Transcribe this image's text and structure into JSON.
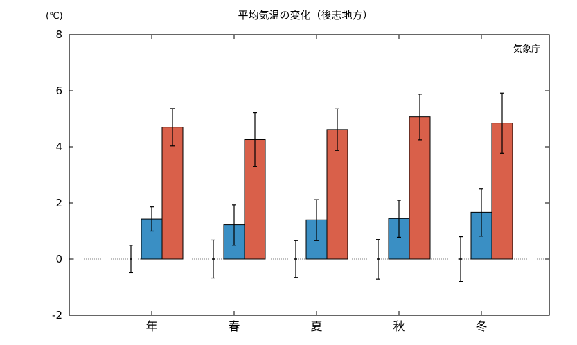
{
  "chart_data": {
    "type": "bar",
    "title": "平均気温の変化（後志地方）",
    "unit_label": "(℃)",
    "source": "気象庁",
    "categories": [
      "年",
      "春",
      "夏",
      "秋",
      "冬"
    ],
    "ylim": [
      -2,
      8
    ],
    "yticks": [
      -2,
      0,
      2,
      4,
      6,
      8
    ],
    "grid": false,
    "zero_line": "dotted",
    "series": [
      {
        "color": "#333333",
        "values": [
          0,
          0,
          0,
          0,
          0
        ],
        "err_low": [
          -0.48,
          -0.68,
          -0.66,
          -0.72,
          -0.8
        ],
        "err_high": [
          0.5,
          0.68,
          0.66,
          0.7,
          0.8
        ]
      },
      {
        "color": "#3a8fc4",
        "values": [
          1.43,
          1.22,
          1.4,
          1.45,
          1.67
        ],
        "err_low": [
          1.0,
          0.5,
          0.66,
          0.78,
          0.82
        ],
        "err_high": [
          1.86,
          1.93,
          2.12,
          2.1,
          2.5
        ]
      },
      {
        "color": "#d9604a",
        "values": [
          4.7,
          4.26,
          4.62,
          5.07,
          4.85
        ],
        "err_low": [
          4.03,
          3.3,
          3.87,
          4.25,
          3.77
        ],
        "err_high": [
          5.36,
          5.22,
          5.35,
          5.88,
          5.92
        ]
      }
    ]
  }
}
